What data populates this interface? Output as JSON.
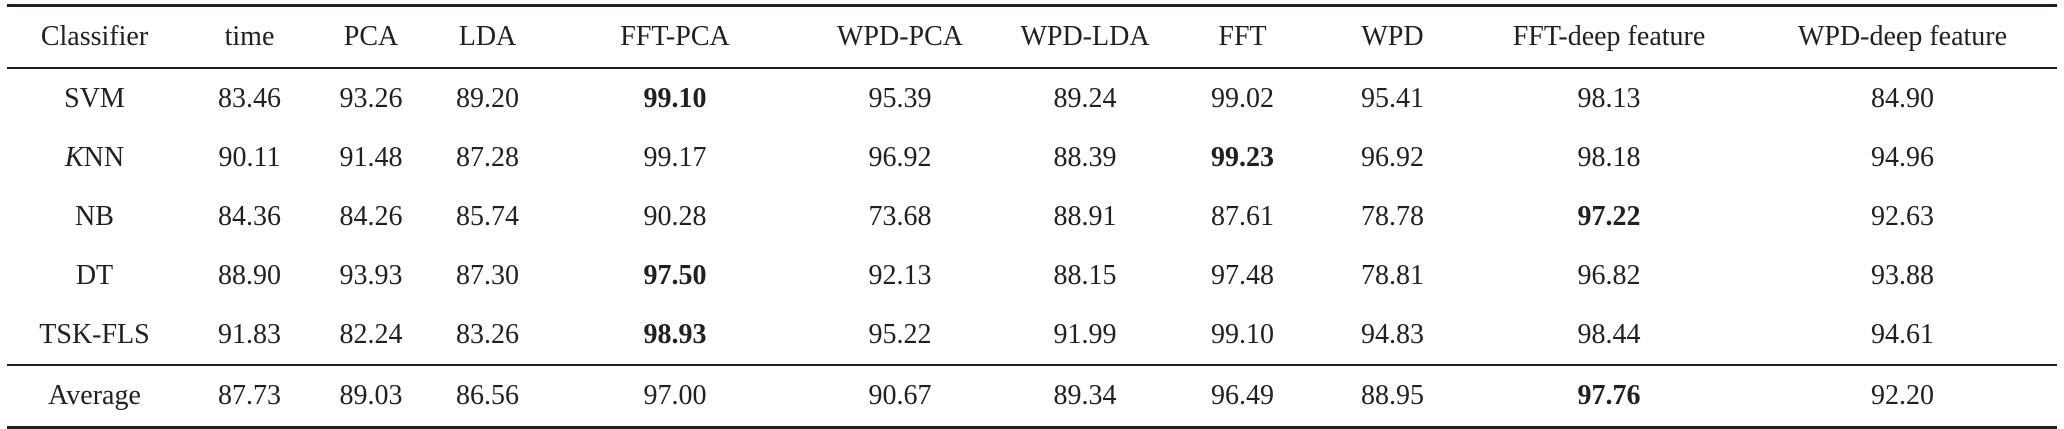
{
  "table": {
    "headers": [
      "Classifier",
      "time",
      "PCA",
      "LDA",
      "FFT-PCA",
      "WPD-PCA",
      "WPD-LDA",
      "FFT",
      "WPD",
      "FFT-deep feature",
      "WPD-deep feature"
    ],
    "rows": [
      {
        "classifier": "SVM",
        "values": [
          "83.46",
          "93.26",
          "89.20",
          "99.10",
          "95.39",
          "89.24",
          "99.02",
          "95.41",
          "98.13",
          "84.90"
        ],
        "bold": [
          false,
          false,
          false,
          true,
          false,
          false,
          false,
          false,
          false,
          false
        ]
      },
      {
        "classifier_italic": "K",
        "classifier_rest": "NN",
        "values": [
          "90.11",
          "91.48",
          "87.28",
          "99.17",
          "96.92",
          "88.39",
          "99.23",
          "96.92",
          "98.18",
          "94.96"
        ],
        "bold": [
          false,
          false,
          false,
          false,
          false,
          false,
          true,
          false,
          false,
          false
        ]
      },
      {
        "classifier": "NB",
        "values": [
          "84.36",
          "84.26",
          "85.74",
          "90.28",
          "73.68",
          "88.91",
          "87.61",
          "78.78",
          "97.22",
          "92.63"
        ],
        "bold": [
          false,
          false,
          false,
          false,
          false,
          false,
          false,
          false,
          true,
          false
        ]
      },
      {
        "classifier": "DT",
        "values": [
          "88.90",
          "93.93",
          "87.30",
          "97.50",
          "92.13",
          "88.15",
          "97.48",
          "78.81",
          "96.82",
          "93.88"
        ],
        "bold": [
          false,
          false,
          false,
          true,
          false,
          false,
          false,
          false,
          false,
          false
        ]
      },
      {
        "classifier": "TSK-FLS",
        "values": [
          "91.83",
          "82.24",
          "83.26",
          "98.93",
          "95.22",
          "91.99",
          "99.10",
          "94.83",
          "98.44",
          "94.61"
        ],
        "bold": [
          false,
          false,
          false,
          true,
          false,
          false,
          false,
          false,
          false,
          false
        ]
      }
    ],
    "average": {
      "label": "Average",
      "values": [
        "87.73",
        "89.03",
        "86.56",
        "97.00",
        "90.67",
        "89.34",
        "96.49",
        "88.95",
        "97.76",
        "92.20"
      ],
      "bold": [
        false,
        false,
        false,
        false,
        false,
        false,
        false,
        false,
        true,
        false
      ]
    }
  }
}
